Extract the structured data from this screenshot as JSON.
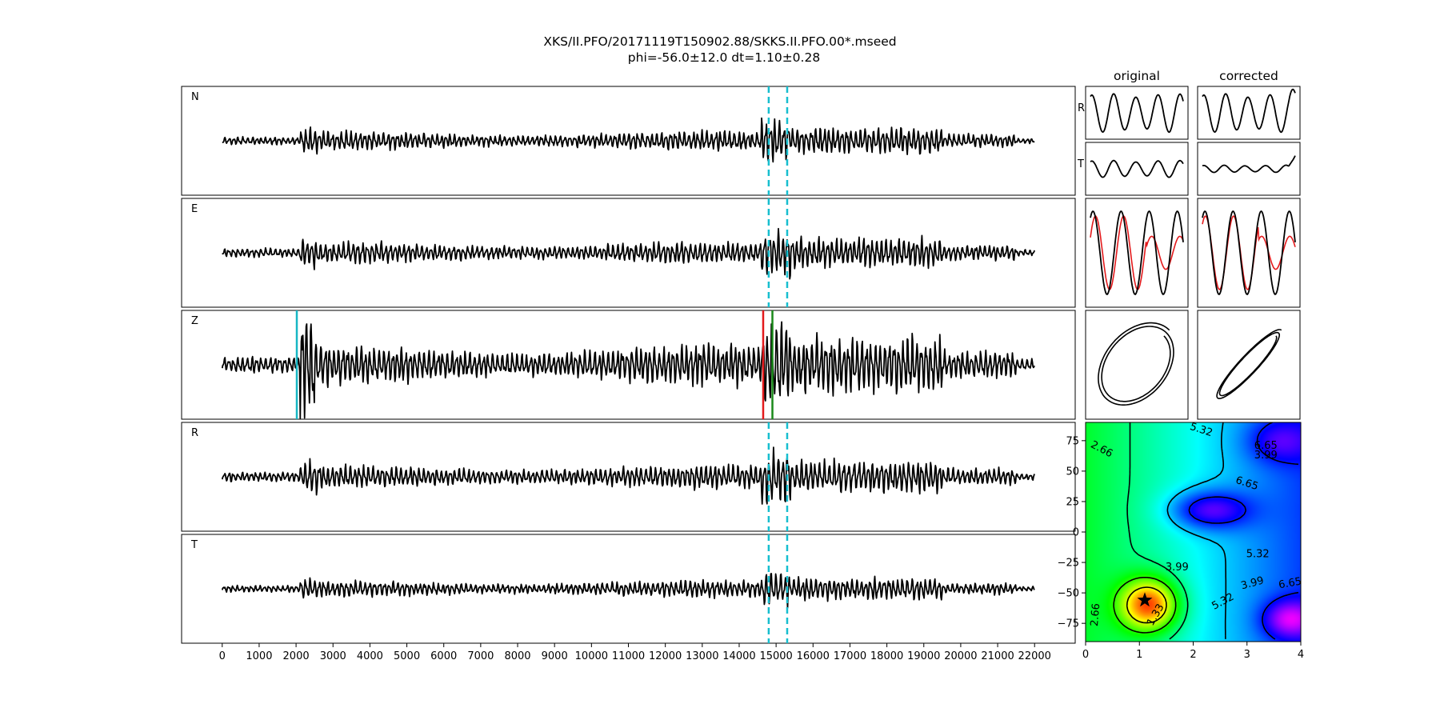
{
  "figure": {
    "title_line1": "XKS/II.PFO/20171119T150902.88/SKKS.II.PFO.00*.mseed",
    "title_line2": "phi=-56.0±12.0 dt=1.10±0.28",
    "col_original": "original",
    "col_corrected": "corrected",
    "row_labels": {
      "r": "R",
      "t": "T"
    }
  },
  "colors": {
    "trace": "#000000",
    "window_marker": "#17becf",
    "pick_red": "#e31a1c",
    "pick_green": "#1a8a1a",
    "pick_cyan": "#17b6c4",
    "corrected_overlay": "#e31a1c"
  },
  "chart_data": [
    {
      "type": "line",
      "name": "seismogram-traces",
      "panels": [
        {
          "label": "N",
          "amplitude": 0.35,
          "markers": [
            {
              "x": 14800,
              "style": "dashed"
            },
            {
              "x": 15300,
              "style": "dashed"
            }
          ]
        },
        {
          "label": "E",
          "amplitude": 0.4,
          "markers": [
            {
              "x": 14800,
              "style": "dashed"
            },
            {
              "x": 15300,
              "style": "dashed"
            }
          ]
        },
        {
          "label": "Z",
          "amplitude": 0.75,
          "markers": [
            {
              "x": 2020,
              "style": "solid",
              "color": "pick_cyan"
            },
            {
              "x": 14650,
              "style": "solid",
              "color": "pick_red"
            },
            {
              "x": 14900,
              "style": "solid",
              "color": "pick_green"
            }
          ]
        },
        {
          "label": "R",
          "amplitude": 0.45,
          "markers": [
            {
              "x": 14800,
              "style": "dashed"
            },
            {
              "x": 15300,
              "style": "dashed"
            }
          ]
        },
        {
          "label": "T",
          "amplitude": 0.3,
          "markers": [
            {
              "x": 14800,
              "style": "dashed"
            },
            {
              "x": 15300,
              "style": "dashed"
            }
          ]
        }
      ],
      "x_range": [
        0,
        22000
      ],
      "xlim": [
        -1100,
        23100
      ],
      "x_ticks": [
        0,
        1000,
        2000,
        3000,
        4000,
        5000,
        6000,
        7000,
        8000,
        9000,
        10000,
        11000,
        12000,
        13000,
        14000,
        15000,
        16000,
        17000,
        18000,
        19000,
        20000,
        21000,
        22000
      ],
      "x_tick_labels": [
        "0",
        "1000",
        "2000",
        "3000",
        "4000",
        "5000",
        "6000",
        "7000",
        "8000",
        "9000",
        "10000",
        "11000",
        "12000",
        "13000",
        "14000",
        "15000",
        "16000",
        "17000",
        "18000",
        "19000",
        "20000",
        "21000",
        "22000"
      ]
    },
    {
      "type": "heatmap",
      "name": "splitting-error-surface",
      "x_ticks": [
        0,
        1,
        2,
        3,
        4
      ],
      "x_tick_labels": [
        "0",
        "1",
        "2",
        "3",
        "4"
      ],
      "y_ticks": [
        75,
        50,
        25,
        0,
        -25,
        -50,
        -75
      ],
      "y_tick_labels": [
        "75",
        "50",
        "25",
        "0",
        "−25",
        "−50",
        "−75"
      ],
      "xlim": [
        0,
        4
      ],
      "ylim": [
        -90,
        90
      ],
      "colormap": "gist_rainbow",
      "contour_levels": [
        "1.33",
        "2.66",
        "3.99",
        "5.32",
        "6.65"
      ],
      "best_fit": {
        "dt": 1.1,
        "phi": -56.0
      }
    }
  ]
}
